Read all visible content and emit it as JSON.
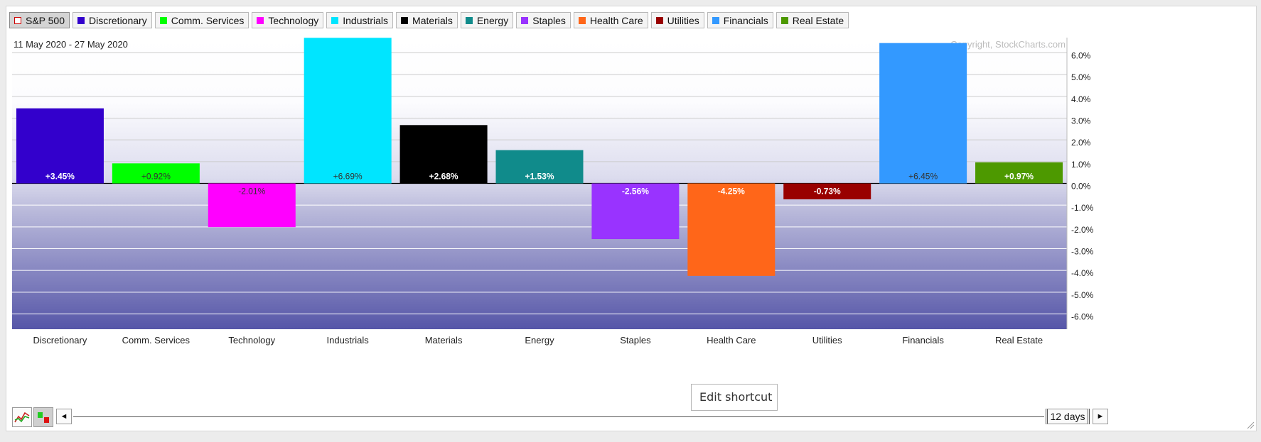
{
  "legend": [
    {
      "label": "S&P 500",
      "color": "#ffffff",
      "border": "#cc0000",
      "active": true
    },
    {
      "label": "Discretionary",
      "color": "#3300cc"
    },
    {
      "label": "Comm. Services",
      "color": "#00ff00"
    },
    {
      "label": "Technology",
      "color": "#ff00ff"
    },
    {
      "label": "Industrials",
      "color": "#00e5ff"
    },
    {
      "label": "Materials",
      "color": "#000000"
    },
    {
      "label": "Energy",
      "color": "#108b8b"
    },
    {
      "label": "Staples",
      "color": "#9933ff"
    },
    {
      "label": "Health Care",
      "color": "#ff6619"
    },
    {
      "label": "Utilities",
      "color": "#990000"
    },
    {
      "label": "Financials",
      "color": "#3399ff"
    },
    {
      "label": "Real Estate",
      "color": "#4d9900"
    }
  ],
  "date_range": "11 May 2020 - 27 May 2020",
  "copyright": "Copyright, StockCharts.com",
  "chart_data": {
    "type": "bar",
    "categories": [
      "Discretionary",
      "Comm. Services",
      "Technology",
      "Industrials",
      "Materials",
      "Energy",
      "Staples",
      "Health Care",
      "Utilities",
      "Financials",
      "Real Estate"
    ],
    "values": [
      3.45,
      0.92,
      -2.01,
      6.69,
      2.68,
      1.53,
      -2.56,
      -4.25,
      -0.73,
      6.45,
      0.97
    ],
    "value_labels": [
      "+3.45%",
      "+0.92%",
      "-2.01%",
      "+6.69%",
      "+2.68%",
      "+1.53%",
      "-2.56%",
      "-4.25%",
      "-0.73%",
      "+6.45%",
      "+0.97%"
    ],
    "colors": [
      "#3300cc",
      "#00ff00",
      "#ff00ff",
      "#00e5ff",
      "#000000",
      "#108b8b",
      "#9933ff",
      "#ff6619",
      "#990000",
      "#3399ff",
      "#4d9900"
    ],
    "label_colors": [
      "#ffffff",
      "#333333",
      "#333333",
      "#333333",
      "#ffffff",
      "#ffffff",
      "#ffffff",
      "#ffffff",
      "#ffffff",
      "#333333",
      "#ffffff"
    ],
    "yticks": [
      6,
      5,
      4,
      3,
      2,
      1,
      0,
      -1,
      -2,
      -3,
      -4,
      -5,
      -6
    ],
    "ytick_labels": [
      "6.0%",
      "5.0%",
      "4.0%",
      "3.0%",
      "2.0%",
      "1.0%",
      "0.0%",
      "-1.0%",
      "-2.0%",
      "-3.0%",
      "-4.0%",
      "-5.0%",
      "-6.0%"
    ],
    "ylim": [
      -6.7,
      6.7
    ],
    "grid": true,
    "ylabel_position": "right"
  },
  "controls": {
    "period": "12 days",
    "left_arrow": "◄",
    "right_arrow": "►"
  },
  "tooltip": "Edit shortcut"
}
